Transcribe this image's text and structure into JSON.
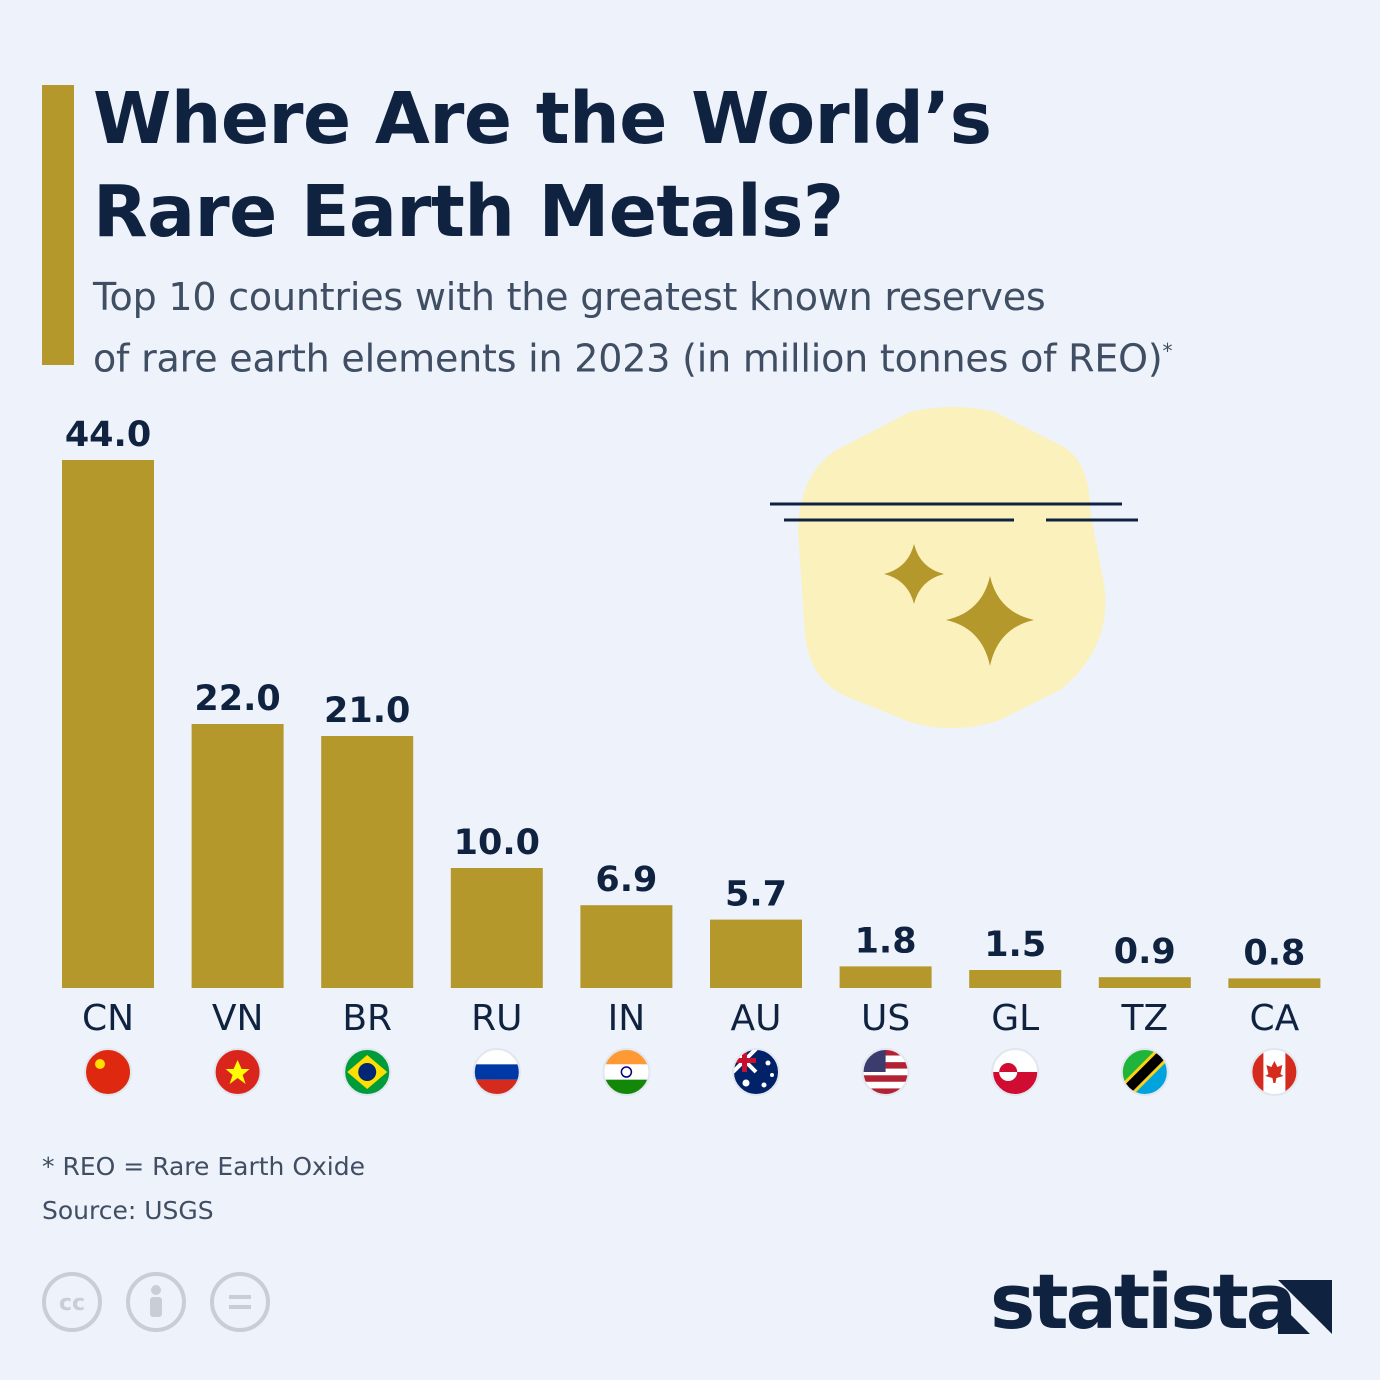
{
  "header": {
    "title_line1": "Where Are the World’s",
    "title_line2": "Rare Earth Metals?",
    "subtitle_line1": "Top 10 countries with the greatest known reserves",
    "subtitle_line2": "of rare earth elements in 2023 (in million tonnes of REO)",
    "subtitle_mark": "*"
  },
  "chart_data": {
    "type": "bar",
    "title": "Where Are the World’s Rare Earth Metals?",
    "subtitle": "Top 10 countries with the greatest known reserves of rare earth elements in 2023 (in million tonnes of REO)*",
    "categories": [
      "CN",
      "VN",
      "BR",
      "RU",
      "IN",
      "AU",
      "US",
      "GL",
      "TZ",
      "CA"
    ],
    "values": [
      44.0,
      22.0,
      21.0,
      10.0,
      6.9,
      5.7,
      1.8,
      1.5,
      0.9,
      0.8
    ],
    "value_labels": [
      "44.0",
      "22.0",
      "21.0",
      "10.0",
      "6.9",
      "5.7",
      "1.8",
      "1.5",
      "0.9",
      "0.8"
    ],
    "ylim": [
      0,
      44
    ],
    "grid": false,
    "bar_color": "#b4982c"
  },
  "footer": {
    "footnote": "* REO = Rare Earth Oxide",
    "source": "Source: USGS",
    "brand": "statista"
  },
  "icons": {
    "license": [
      "cc-icon",
      "by-icon",
      "nd-icon"
    ],
    "flags": [
      "china-flag-icon",
      "vietnam-flag-icon",
      "brazil-flag-icon",
      "russia-flag-icon",
      "india-flag-icon",
      "australia-flag-icon",
      "usa-flag-icon",
      "greenland-flag-icon",
      "tanzania-flag-icon",
      "canada-flag-icon"
    ]
  },
  "colors": {
    "background": "#eef2fa",
    "accent": "#b4982c",
    "text": "#0f2240",
    "decor_glow": "#fbf0b8"
  }
}
